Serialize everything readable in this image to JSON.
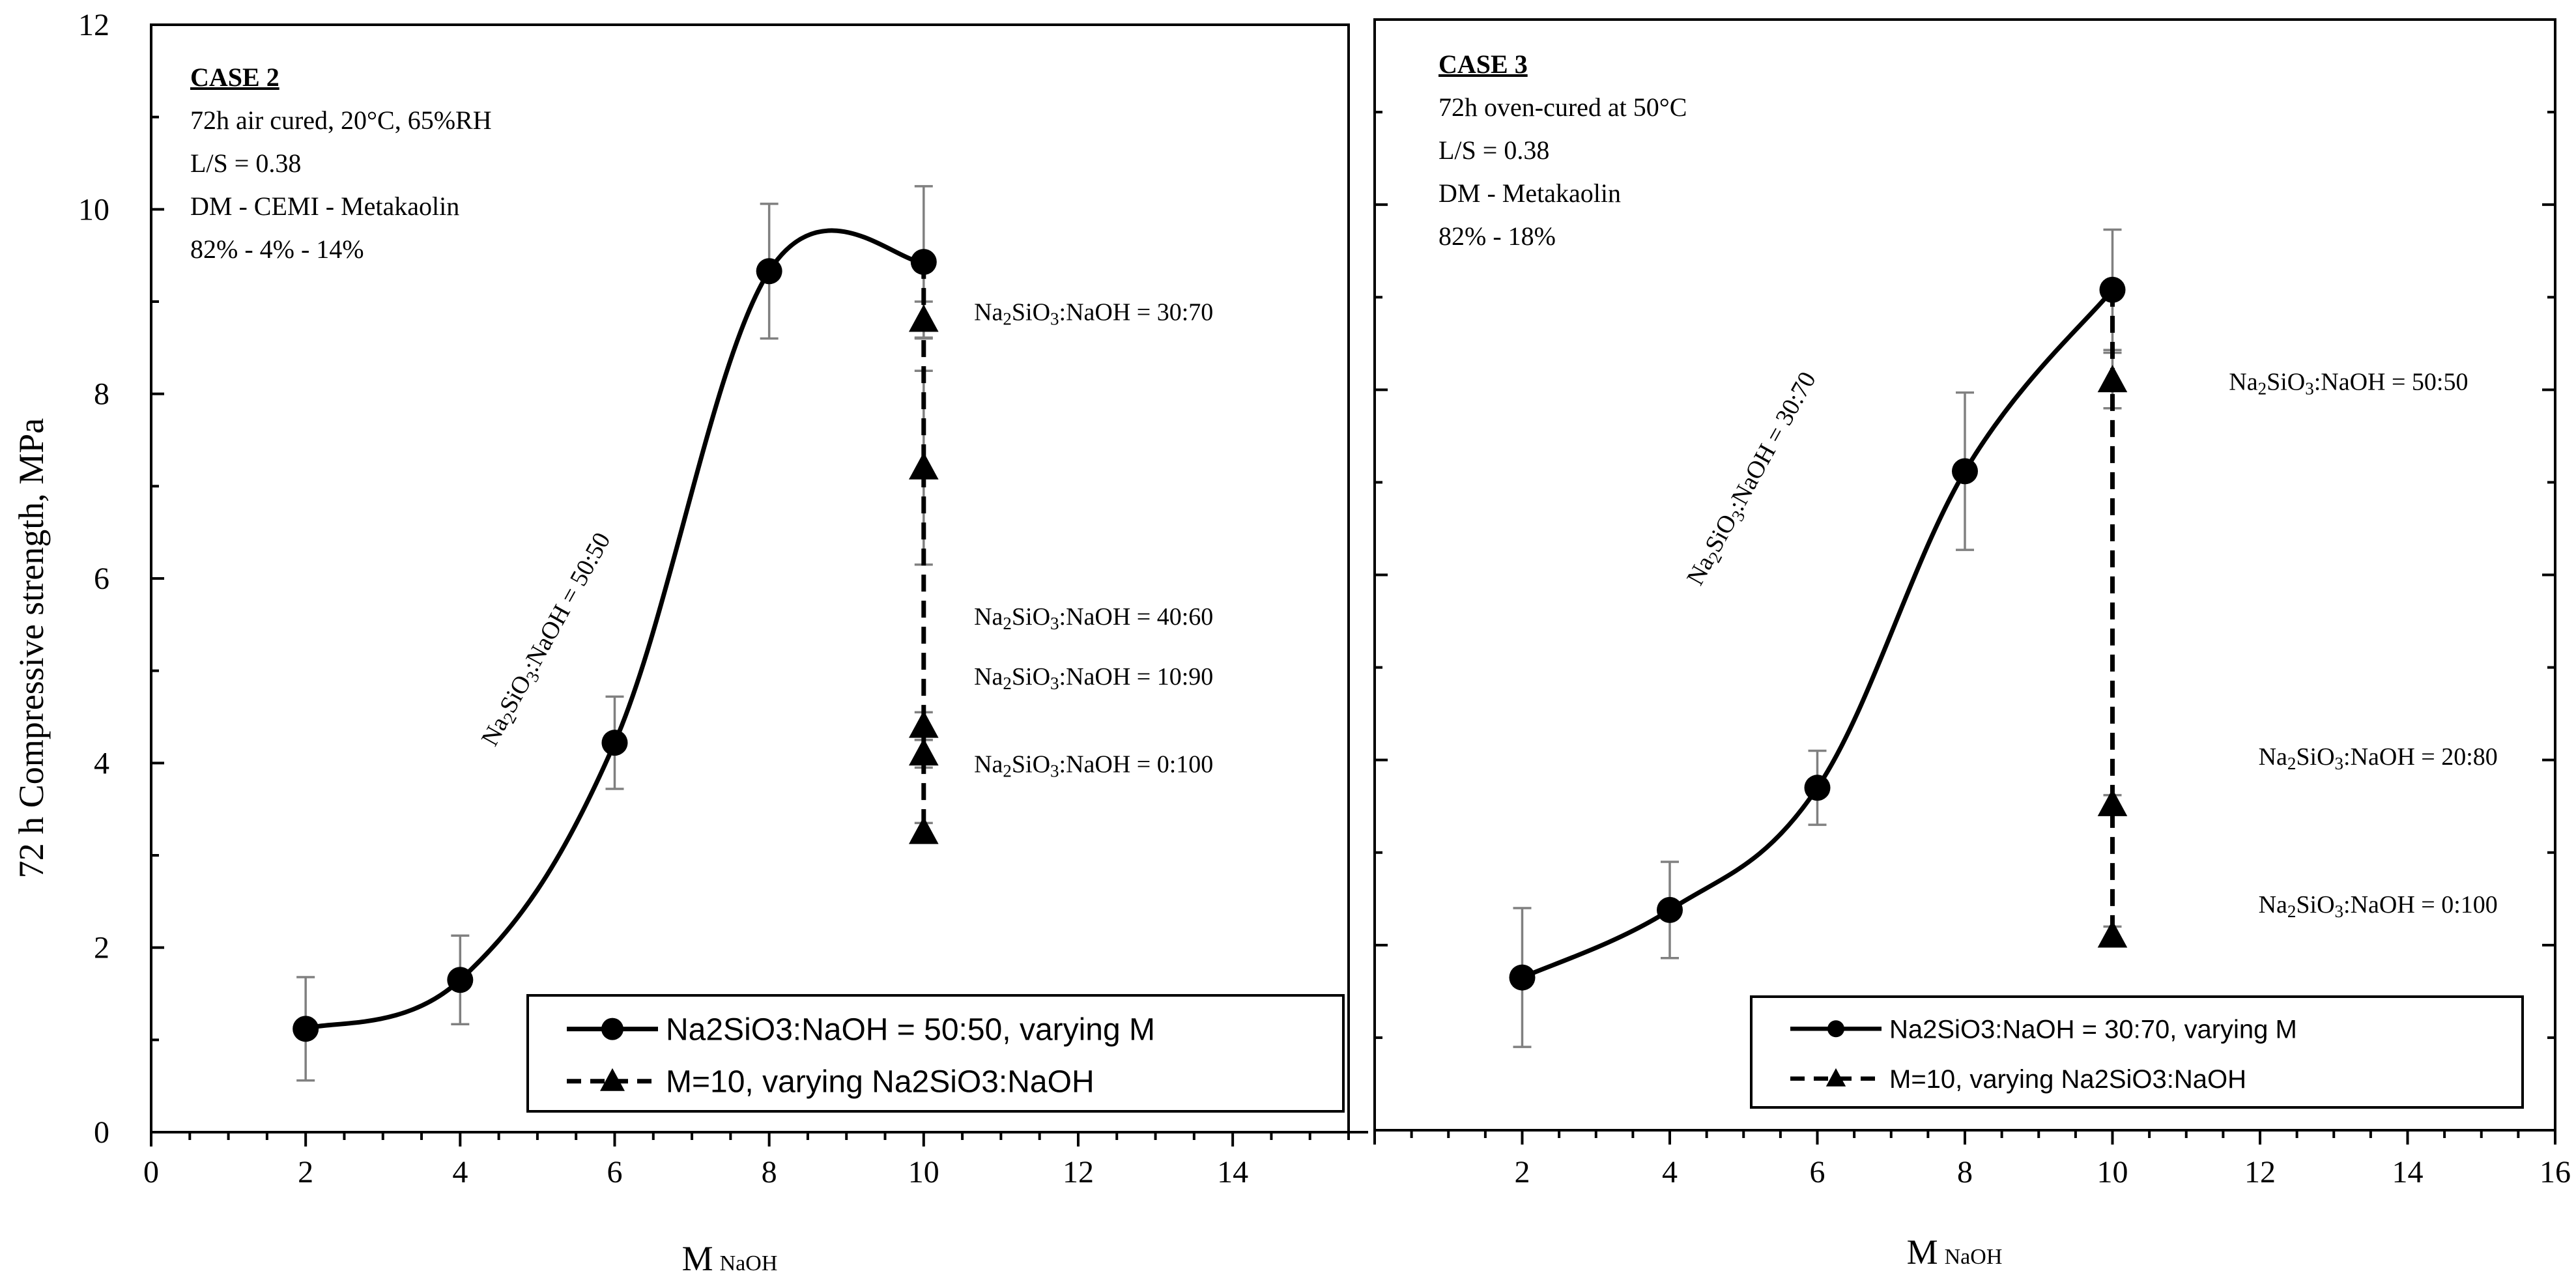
{
  "figure": {
    "y_axis_title": "72 h Compressive strength, MPa",
    "x_axis_title_main": "M",
    "x_axis_title_sub": "NaOH"
  },
  "colors": {
    "series": "#000000",
    "errorbar": "#808080",
    "background": "#ffffff"
  },
  "chart_data": [
    {
      "type": "line",
      "id": "case2",
      "case_title": "CASE 2",
      "info_lines": [
        "72h air cured, 20°C, 65%RH",
        "L/S = 0.38",
        "DM - CEMI - Metakaolin",
        "82% - 4% -  14%"
      ],
      "xlim": [
        0,
        15.5
      ],
      "ylim": [
        0,
        12
      ],
      "x_ticks": [
        0,
        2,
        4,
        6,
        8,
        10,
        12,
        14
      ],
      "x_tick_labels": [
        "0",
        "2",
        "4",
        "6",
        "8",
        "10",
        "12",
        "14"
      ],
      "y_ticks": [
        0,
        2,
        4,
        6,
        8,
        10,
        12
      ],
      "y_tick_labels": [
        "0",
        "2",
        "4",
        "6",
        "8",
        "10",
        "12"
      ],
      "series": [
        {
          "name": "Na2SiO3:NaOH = 50:50, varying M",
          "style": "solid-circle",
          "x": [
            2,
            4,
            6,
            8,
            10
          ],
          "y": [
            1.12,
            1.65,
            4.22,
            9.33,
            9.43
          ],
          "err": [
            0.56,
            0.48,
            0.5,
            0.73,
            0.82
          ]
        },
        {
          "name": "M=10, varying Na2SiO3:NaOH",
          "style": "dashed-triangle",
          "x": [
            10,
            10,
            10,
            10,
            10
          ],
          "y": [
            8.8,
            7.2,
            4.4,
            4.1,
            3.25
          ],
          "err": [
            0.2,
            1.05,
            0.15,
            0.15,
            0.1
          ]
        }
      ],
      "rotated_label": {
        "text": "Na2SiO3:NaOH = 50:50",
        "x": 5.2,
        "y": 5.3
      },
      "annotations": [
        {
          "text": "Na2SiO3:NaOH = 30:70",
          "x": 12.2,
          "y": 8.8
        },
        {
          "text": "Na2SiO3:NaOH = 40:60",
          "x": 12.2,
          "y": 5.5
        },
        {
          "text": "Na2SiO3:NaOH = 10:90",
          "x": 12.2,
          "y": 4.85
        },
        {
          "text": "Na2SiO3:NaOH = 0:100",
          "x": 12.2,
          "y": 3.9
        }
      ],
      "legend_position": "bottom-right"
    },
    {
      "type": "line",
      "id": "case3",
      "case_title": "CASE 3",
      "info_lines": [
        "72h oven-cured at 50°C",
        "L/S = 0.38",
        "DM - Metakaolin",
        "82% - 18%"
      ],
      "xlim": [
        0,
        16
      ],
      "ylim": [
        0,
        12
      ],
      "x_ticks": [
        2,
        4,
        6,
        8,
        10,
        12,
        14,
        16
      ],
      "x_tick_labels": [
        "2",
        "4",
        "6",
        "8",
        "10",
        "12",
        "14",
        "16"
      ],
      "y_ticks": [
        0,
        2,
        4,
        6,
        8,
        10,
        12
      ],
      "series": [
        {
          "name": "Na2SiO3:NaOH = 30:70, varying M",
          "style": "solid-circle",
          "x": [
            2,
            4,
            6,
            8,
            10
          ],
          "y": [
            1.65,
            2.38,
            3.7,
            7.12,
            9.08
          ],
          "err": [
            0.75,
            0.52,
            0.4,
            0.85,
            0.65
          ]
        },
        {
          "name": "M=10, varying Na2SiO3:NaOH",
          "style": "dashed-triangle",
          "x": [
            10,
            10,
            10
          ],
          "y": [
            8.1,
            3.52,
            2.1
          ],
          "err": [
            0.3,
            0.1,
            0.1
          ]
        }
      ],
      "rotated_label": {
        "text": "Na2SiO3:NaOH = 30:70",
        "x": 5.2,
        "y": 7.0
      },
      "annotations": [
        {
          "text": "Na2SiO3:NaOH = 50:50",
          "x": 13.2,
          "y": 8.0
        },
        {
          "text": "Na2SiO3:NaOH = 20:80",
          "x": 13.6,
          "y": 3.95
        },
        {
          "text": "Na2SiO3:NaOH = 0:100",
          "x": 13.6,
          "y": 2.35
        }
      ],
      "legend_position": "bottom-right"
    }
  ]
}
